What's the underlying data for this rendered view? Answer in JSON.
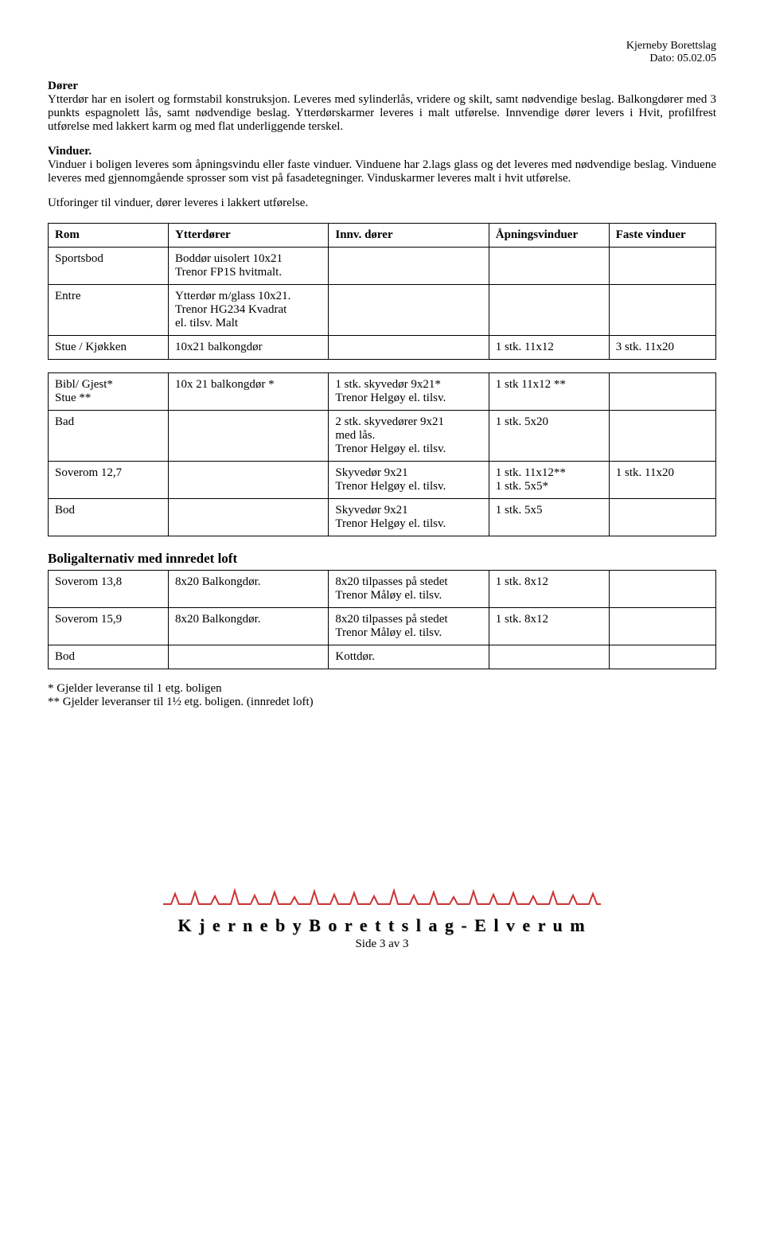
{
  "header": {
    "org": "Kjerneby Borettslag",
    "date": "Dato: 05.02.05"
  },
  "sections": {
    "dorer_title": "Dører",
    "dorer_body": "Ytterdør har en isolert og formstabil konstruksjon.  Leveres med sylinderlås, vridere og skilt, samt nødvendige beslag. Balkongdører med 3 punkts espagnolett lås, samt nødvendige beslag. Ytterdørskarmer leveres i malt utførelse. Innvendige dører levers i Hvit, profilfrest utførelse med lakkert karm og med flat underliggende terskel.",
    "vinduer_title": "Vinduer.",
    "vinduer_body": "Vinduer i boligen leveres som åpningsvindu eller faste vinduer. Vinduene har 2.lags glass og det leveres med nødvendige beslag. Vinduene leveres med gjennomgående sprosser som vist på fasadetegninger. Vinduskarmer leveres malt i hvit utførelse.",
    "utforinger": "Utforinger til vinduer, dører leveres i lakkert utførelse."
  },
  "table_headers": {
    "rom": "Rom",
    "ytter": "Ytterdører",
    "innv": "Innv. dører",
    "apn": "Åpningsvinduer",
    "fast": "Faste vinduer"
  },
  "rows1": [
    {
      "rom": "Sportsbod",
      "ytter": "Boddør uisolert 10x21\nTrenor FP1S hvitmalt.",
      "innv": "",
      "apn": "",
      "fast": ""
    },
    {
      "rom": "Entre",
      "ytter": "Ytterdør m/glass 10x21.\nTrenor HG234 Kvadrat\nel. tilsv. Malt",
      "innv": "",
      "apn": "",
      "fast": ""
    },
    {
      "rom": "Stue / Kjøkken",
      "ytter": "10x21 balkongdør",
      "innv": "",
      "apn": "1 stk. 11x12",
      "fast": "3 stk. 11x20"
    }
  ],
  "rows2": [
    {
      "rom": "Bibl/ Gjest*\nStue **",
      "ytter": "10x 21 balkongdør *",
      "innv": "1 stk. skyvedør 9x21*\nTrenor Helgøy el. tilsv.",
      "apn": "1 stk 11x12 **",
      "fast": ""
    },
    {
      "rom": "Bad",
      "ytter": "",
      "innv": "2 stk. skyvedører  9x21\nmed lås.\nTrenor Helgøy el. tilsv.",
      "apn": "1 stk.   5x20",
      "fast": ""
    },
    {
      "rom": "Soverom 12,7",
      "ytter": "",
      "innv": "Skyvedør 9x21\nTrenor Helgøy el. tilsv.",
      "apn": "1 stk. 11x12**\n1 stk.   5x5*",
      "fast": "1 stk. 11x20"
    },
    {
      "rom": " Bod",
      "ytter": "",
      "innv": "Skyvedør 9x21\nTrenor Helgøy el. tilsv.",
      "apn": "1 stk.   5x5",
      "fast": ""
    }
  ],
  "loft_title": "Boligalternativ med innredet loft",
  "rows3": [
    {
      "rom": "Soverom 13,8",
      "ytter": "8x20 Balkongdør.",
      "innv": "8x20 tilpasses på stedet\nTrenor Måløy el. tilsv.",
      "apn": "1 stk.   8x12",
      "fast": ""
    },
    {
      "rom": "Soverom 15,9",
      "ytter": "8x20 Balkongdør.",
      "innv": "8x20 tilpasses på stedet\nTrenor Måløy el. tilsv.",
      "apn": "1 stk.   8x12",
      "fast": ""
    },
    {
      "rom": " Bod",
      "ytter": "",
      "innv": "Kottdør.",
      "apn": "",
      "fast": ""
    }
  ],
  "footnotes": {
    "line1": "* Gjelder leveranse til 1 etg. boligen",
    "line2": "** Gjelder leveranser til 1½ etg. boligen. (innredet loft)"
  },
  "footer": {
    "title": "K j e r n e b y   B o r e t t s l a g   -   E l v e r u m",
    "page": "Side 3 av 3"
  },
  "colors": {
    "skyline": "#cc3333",
    "text": "#000000",
    "background": "#ffffff"
  }
}
